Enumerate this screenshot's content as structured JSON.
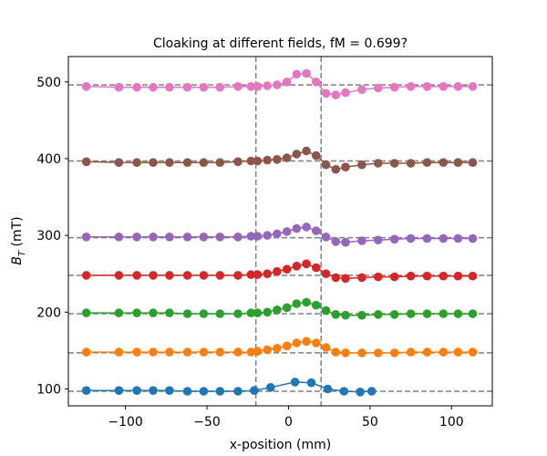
{
  "chart_data": {
    "type": "line",
    "title": "Cloaking at different fields, fM = 0.699?",
    "xlabel": "x-position (mm)",
    "ylabel": "B_T (mT)",
    "xlim": [
      -135,
      125
    ],
    "ylim": [
      78,
      533
    ],
    "xticks": [
      -100,
      -50,
      0,
      50,
      100
    ],
    "yticks": [
      100,
      200,
      300,
      400,
      500
    ],
    "grid": false,
    "vlines": [
      -20,
      20
    ],
    "hlines": [
      97,
      147,
      198,
      248,
      297,
      397,
      496
    ],
    "series": [
      {
        "color": "#1f77b4",
        "points": [
          [
            -124,
            98
          ],
          [
            -104,
            98
          ],
          [
            -93,
            98
          ],
          [
            -83,
            98
          ],
          [
            -73,
            98
          ],
          [
            -62,
            97
          ],
          [
            -52,
            97
          ],
          [
            -42,
            97
          ],
          [
            -31,
            97
          ],
          [
            -21,
            98
          ],
          [
            -11,
            102
          ],
          [
            4,
            109
          ],
          [
            14,
            108
          ],
          [
            24,
            100
          ],
          [
            34,
            97
          ],
          [
            44,
            96
          ],
          [
            51,
            97
          ]
        ]
      },
      {
        "color": "#ff7f0e",
        "points": [
          [
            -124,
            148
          ],
          [
            -104,
            148
          ],
          [
            -93,
            148
          ],
          [
            -83,
            148
          ],
          [
            -73,
            148
          ],
          [
            -62,
            148
          ],
          [
            -52,
            148
          ],
          [
            -42,
            148
          ],
          [
            -31,
            148
          ],
          [
            -23,
            148
          ],
          [
            -19,
            149
          ],
          [
            -13,
            151
          ],
          [
            -7,
            153
          ],
          [
            -1,
            156
          ],
          [
            5,
            160
          ],
          [
            11,
            162
          ],
          [
            17,
            160
          ],
          [
            23,
            154
          ],
          [
            29,
            148
          ],
          [
            35,
            147
          ],
          [
            45,
            147
          ],
          [
            55,
            147
          ],
          [
            65,
            147
          ],
          [
            75,
            148
          ],
          [
            85,
            148
          ],
          [
            95,
            148
          ],
          [
            104,
            148
          ],
          [
            113,
            148
          ]
        ]
      },
      {
        "color": "#2ca02c",
        "points": [
          [
            -124,
            199
          ],
          [
            -104,
            199
          ],
          [
            -93,
            199
          ],
          [
            -83,
            199
          ],
          [
            -73,
            199
          ],
          [
            -62,
            198
          ],
          [
            -52,
            198
          ],
          [
            -42,
            198
          ],
          [
            -31,
            198
          ],
          [
            -23,
            199
          ],
          [
            -19,
            199
          ],
          [
            -13,
            200
          ],
          [
            -7,
            203
          ],
          [
            -1,
            206
          ],
          [
            5,
            211
          ],
          [
            11,
            213
          ],
          [
            17,
            209
          ],
          [
            23,
            202
          ],
          [
            29,
            197
          ],
          [
            35,
            196
          ],
          [
            45,
            196
          ],
          [
            55,
            197
          ],
          [
            65,
            197
          ],
          [
            75,
            198
          ],
          [
            85,
            198
          ],
          [
            95,
            198
          ],
          [
            104,
            198
          ],
          [
            113,
            198
          ]
        ]
      },
      {
        "color": "#d62728",
        "points": [
          [
            -124,
            248
          ],
          [
            -104,
            248
          ],
          [
            -93,
            248
          ],
          [
            -83,
            248
          ],
          [
            -73,
            248
          ],
          [
            -62,
            248
          ],
          [
            -52,
            248
          ],
          [
            -42,
            248
          ],
          [
            -31,
            248
          ],
          [
            -23,
            249
          ],
          [
            -19,
            249
          ],
          [
            -13,
            250
          ],
          [
            -7,
            253
          ],
          [
            -1,
            256
          ],
          [
            5,
            260
          ],
          [
            11,
            263
          ],
          [
            17,
            258
          ],
          [
            23,
            250
          ],
          [
            29,
            245
          ],
          [
            35,
            244
          ],
          [
            45,
            245
          ],
          [
            55,
            246
          ],
          [
            65,
            246
          ],
          [
            75,
            247
          ],
          [
            85,
            247
          ],
          [
            95,
            247
          ],
          [
            104,
            247
          ],
          [
            113,
            247
          ]
        ]
      },
      {
        "color": "#9467bd",
        "points": [
          [
            -124,
            298
          ],
          [
            -104,
            298
          ],
          [
            -93,
            298
          ],
          [
            -83,
            298
          ],
          [
            -73,
            298
          ],
          [
            -62,
            298
          ],
          [
            -52,
            298
          ],
          [
            -42,
            298
          ],
          [
            -31,
            298
          ],
          [
            -23,
            299
          ],
          [
            -19,
            299
          ],
          [
            -13,
            300
          ],
          [
            -7,
            302
          ],
          [
            -1,
            305
          ],
          [
            5,
            309
          ],
          [
            11,
            311
          ],
          [
            17,
            306
          ],
          [
            23,
            298
          ],
          [
            29,
            292
          ],
          [
            35,
            291
          ],
          [
            45,
            293
          ],
          [
            55,
            294
          ],
          [
            65,
            295
          ],
          [
            75,
            296
          ],
          [
            85,
            296
          ],
          [
            95,
            296
          ],
          [
            104,
            296
          ],
          [
            113,
            296
          ]
        ]
      },
      {
        "color": "#8c564b",
        "points": [
          [
            -124,
            396
          ],
          [
            -104,
            395
          ],
          [
            -93,
            395
          ],
          [
            -83,
            395
          ],
          [
            -73,
            395
          ],
          [
            -62,
            395
          ],
          [
            -52,
            395
          ],
          [
            -42,
            395
          ],
          [
            -31,
            396
          ],
          [
            -23,
            397
          ],
          [
            -19,
            397
          ],
          [
            -13,
            398
          ],
          [
            -7,
            399
          ],
          [
            -1,
            401
          ],
          [
            5,
            406
          ],
          [
            11,
            410
          ],
          [
            17,
            404
          ],
          [
            23,
            392
          ],
          [
            29,
            386
          ],
          [
            35,
            389
          ],
          [
            45,
            392
          ],
          [
            55,
            394
          ],
          [
            65,
            394
          ],
          [
            75,
            394
          ],
          [
            85,
            395
          ],
          [
            95,
            395
          ],
          [
            104,
            395
          ],
          [
            113,
            395
          ]
        ]
      },
      {
        "color": "#e377c2",
        "points": [
          [
            -124,
            494
          ],
          [
            -104,
            493
          ],
          [
            -93,
            493
          ],
          [
            -83,
            493
          ],
          [
            -73,
            493
          ],
          [
            -62,
            493
          ],
          [
            -52,
            493
          ],
          [
            -42,
            493
          ],
          [
            -31,
            494
          ],
          [
            -23,
            494
          ],
          [
            -19,
            494
          ],
          [
            -13,
            495
          ],
          [
            -7,
            496
          ],
          [
            -1,
            500
          ],
          [
            5,
            510
          ],
          [
            11,
            511
          ],
          [
            17,
            500
          ],
          [
            23,
            485
          ],
          [
            29,
            483
          ],
          [
            35,
            486
          ],
          [
            45,
            490
          ],
          [
            55,
            492
          ],
          [
            65,
            493
          ],
          [
            75,
            494
          ],
          [
            85,
            494
          ],
          [
            95,
            494
          ],
          [
            104,
            494
          ],
          [
            113,
            494
          ]
        ]
      }
    ]
  }
}
